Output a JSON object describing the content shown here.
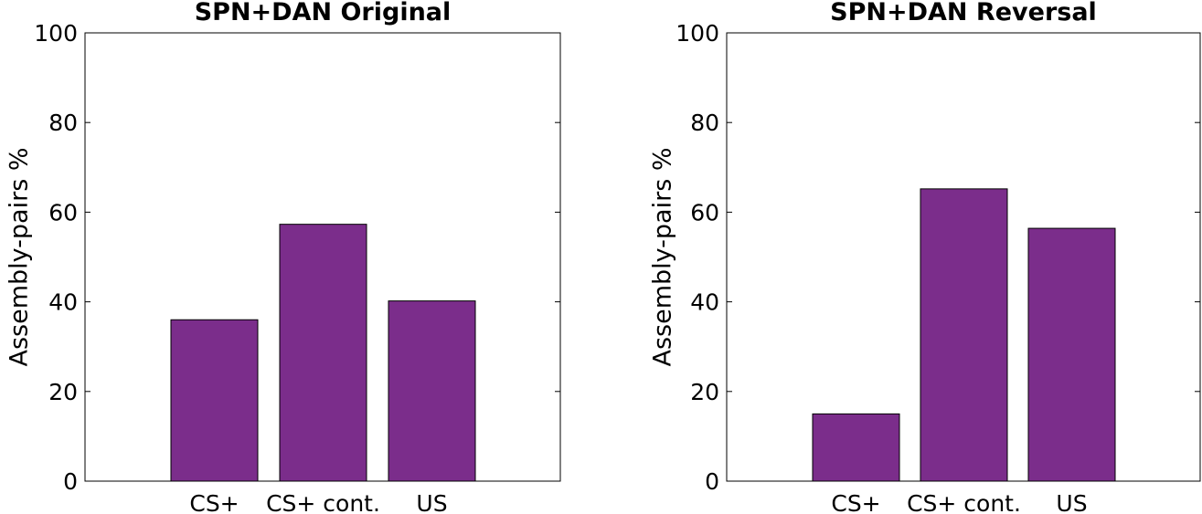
{
  "chart_data": [
    {
      "type": "bar",
      "title": "SPN+DAN Original",
      "xlabel": "",
      "ylabel": "Assembly-pairs %",
      "categories": [
        "CS+",
        "CS+ cont.",
        "US"
      ],
      "values": [
        36,
        57.3,
        40.2
      ],
      "ylim": [
        0,
        100
      ],
      "yticks": [
        0,
        20,
        40,
        60,
        80,
        100
      ],
      "grid": false,
      "bar_color": "#7b2d8b"
    },
    {
      "type": "bar",
      "title": "SPN+DAN Reversal",
      "xlabel": "",
      "ylabel": "Assembly-pairs %",
      "categories": [
        "CS+",
        "CS+ cont.",
        "US"
      ],
      "values": [
        15,
        65.2,
        56.4
      ],
      "ylim": [
        0,
        100
      ],
      "yticks": [
        0,
        20,
        40,
        60,
        80,
        100
      ],
      "grid": false,
      "bar_color": "#7b2d8b"
    }
  ]
}
